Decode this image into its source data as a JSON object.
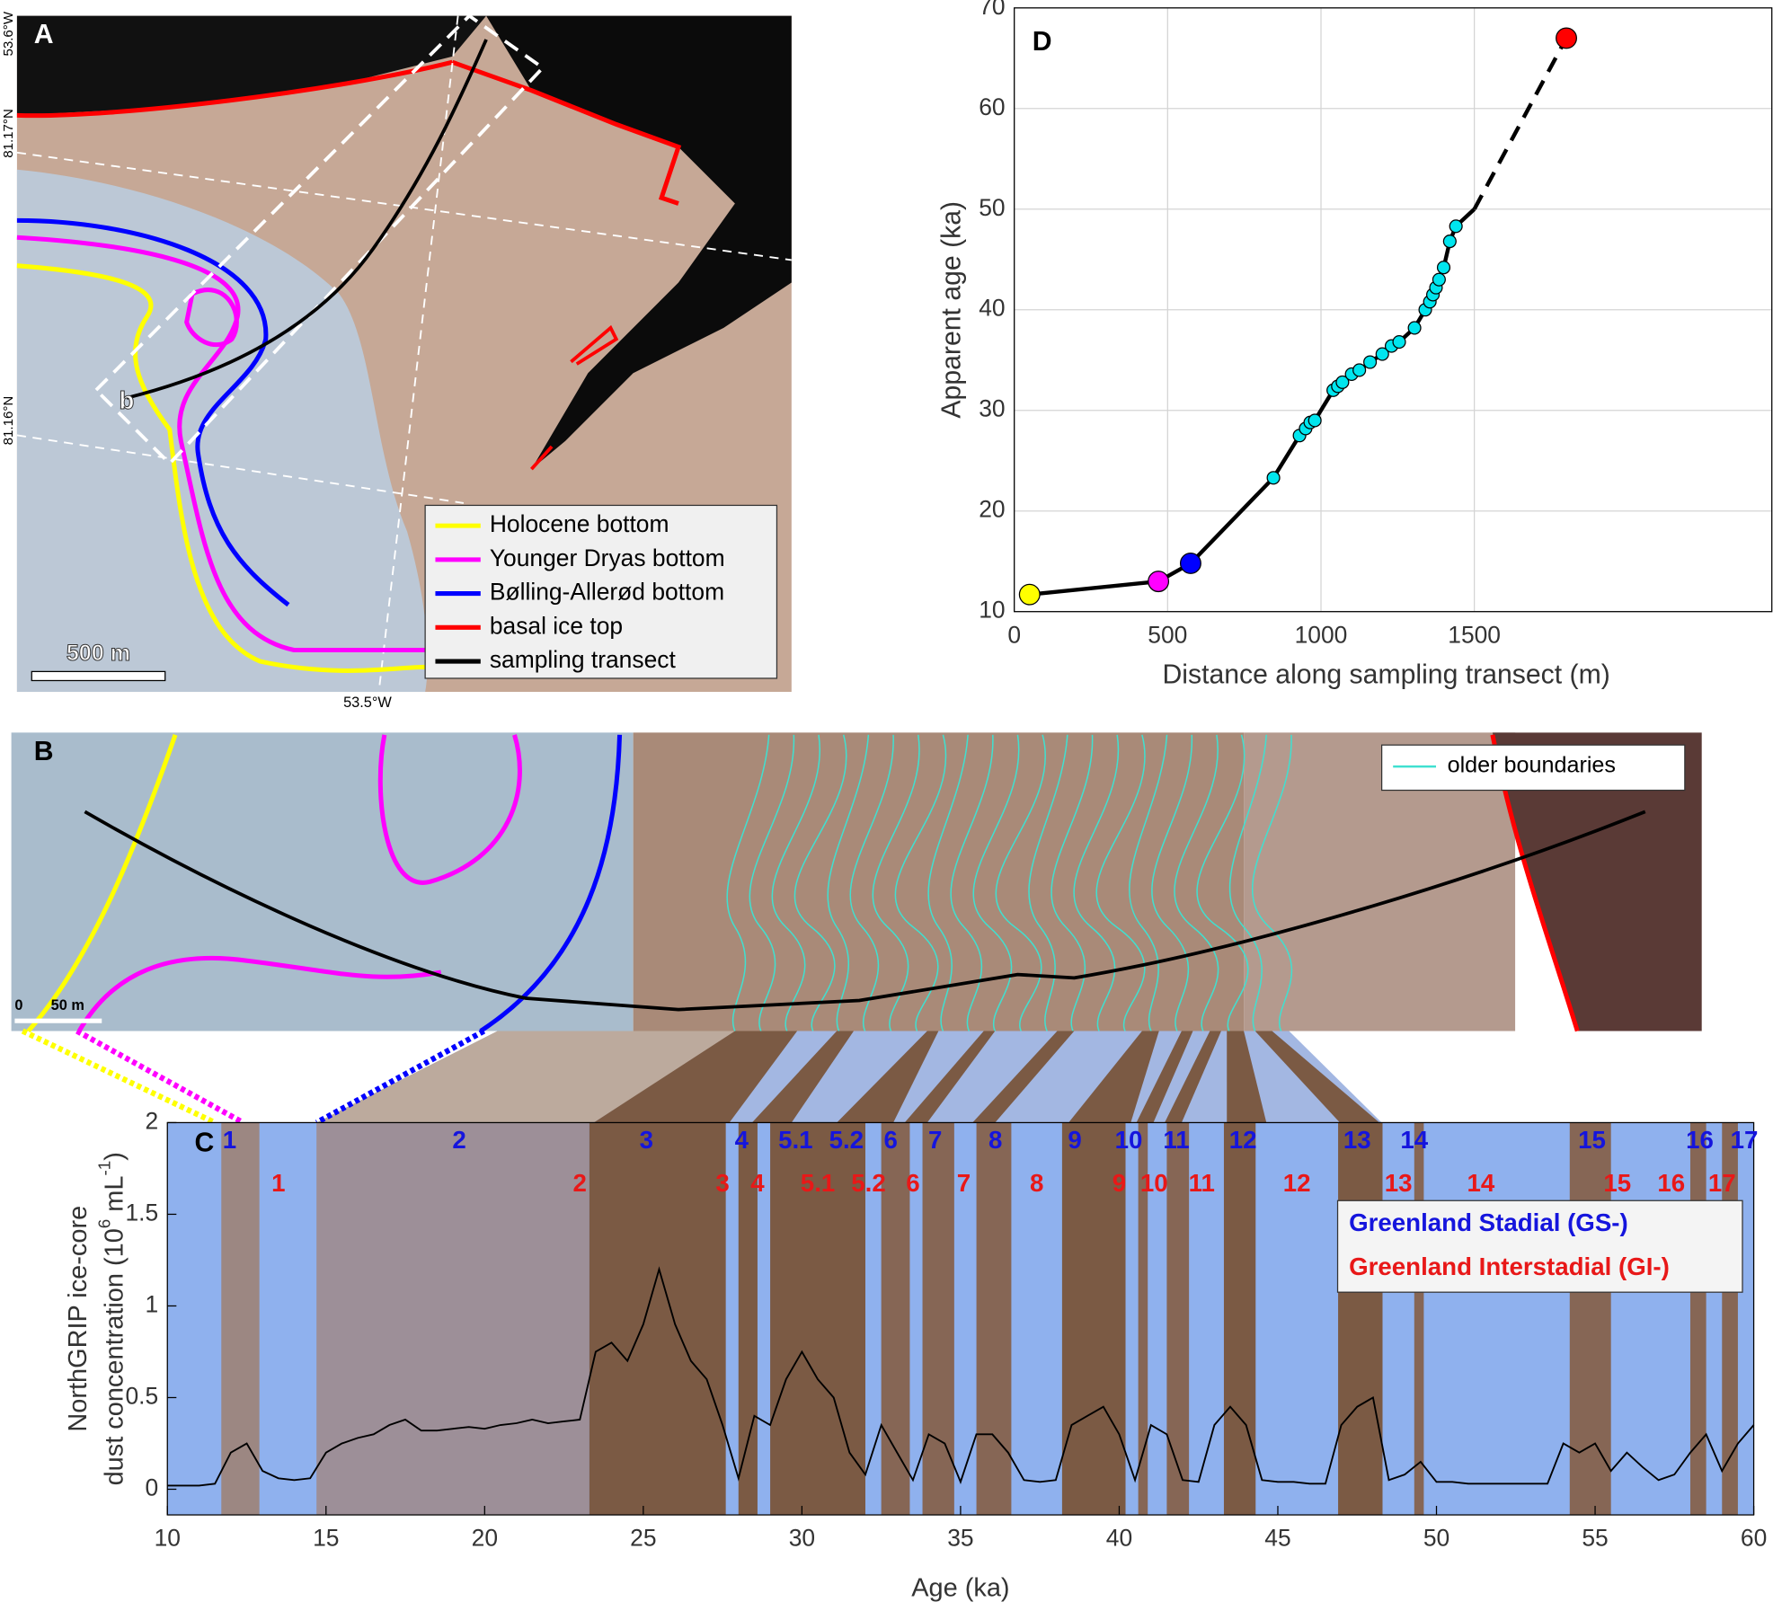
{
  "chart_data": [
    {
      "type": "map",
      "label": "A",
      "point_label": "b",
      "scale_bar": "500 m",
      "lat_labels": [
        "53.6°W",
        "81.17°N",
        "81.16°N"
      ],
      "lon_label": "53.5°W",
      "legend": [
        {
          "name": "Holocene bottom",
          "color": "#ffff00"
        },
        {
          "name": "Younger Dryas bottom",
          "color": "#ff00ff"
        },
        {
          "name": "Bølling-Allerød bottom",
          "color": "#0000ff"
        },
        {
          "name": "basal ice top",
          "color": "#ff0000"
        },
        {
          "name": "sampling transect",
          "color": "#000000"
        }
      ]
    },
    {
      "type": "image",
      "label": "B",
      "scale_zero": 0,
      "scale_bar": "50 m",
      "legend": [
        {
          "name": "older boundaries",
          "color": "#40e0d0"
        }
      ]
    },
    {
      "type": "line",
      "label": "C",
      "xlabel": "Age (ka)",
      "ylabel": [
        "NorthGRIP ice-core",
        "dust concentration (10",
        "6",
        " mL",
        "-1",
        ")"
      ],
      "xlim": [
        10,
        60
      ],
      "ylim": [
        -0.14,
        2
      ],
      "xticks": [
        10,
        15,
        20,
        25,
        30,
        35,
        40,
        45,
        50,
        55,
        60
      ],
      "yticks": [
        0,
        0.5,
        1,
        1.5,
        2
      ],
      "background": "#8fb1ee",
      "legend": [
        {
          "name": "Greenland Stadial (GS-)",
          "color": "#1515dd"
        },
        {
          "name": "Greenland Interstadial (GI-)",
          "color": "#e81818"
        }
      ],
      "bands": [
        {
          "start": 11.7,
          "end": 12.9,
          "color": "#9c8782"
        },
        {
          "start": 14.7,
          "end": 23.3,
          "color": "#9d8f98"
        },
        {
          "start": 23.3,
          "end": 27.6,
          "color": "#7b5a44"
        },
        {
          "start": 28.0,
          "end": 28.6,
          "color": "#7b5a44"
        },
        {
          "start": 29.0,
          "end": 32.0,
          "color": "#7b5a44"
        },
        {
          "start": 32.5,
          "end": 33.4,
          "color": "#866655"
        },
        {
          "start": 33.8,
          "end": 34.8,
          "color": "#866655"
        },
        {
          "start": 35.5,
          "end": 36.6,
          "color": "#866655"
        },
        {
          "start": 38.2,
          "end": 40.2,
          "color": "#7b5a44"
        },
        {
          "start": 40.6,
          "end": 40.9,
          "color": "#866655"
        },
        {
          "start": 41.5,
          "end": 42.2,
          "color": "#866655"
        },
        {
          "start": 43.3,
          "end": 44.3,
          "color": "#7b5a44"
        },
        {
          "start": 46.9,
          "end": 48.3,
          "color": "#7b5a44"
        },
        {
          "start": 49.3,
          "end": 49.6,
          "color": "#866655"
        },
        {
          "start": 54.2,
          "end": 55.5,
          "color": "#866655"
        },
        {
          "start": 58.0,
          "end": 58.5,
          "color": "#866655"
        },
        {
          "start": 59.0,
          "end": 59.5,
          "color": "#866655"
        }
      ],
      "gs_labels": [
        {
          "label": "1",
          "age": 11.96
        },
        {
          "label": "2",
          "age": 19.2
        },
        {
          "label": "3",
          "age": 25.1
        },
        {
          "label": "4",
          "age": 28.1
        },
        {
          "label": "5.1",
          "age": 29.8
        },
        {
          "label": "5.2",
          "age": 31.4
        },
        {
          "label": "6",
          "age": 32.8
        },
        {
          "label": "7",
          "age": 34.2
        },
        {
          "label": "8",
          "age": 36.1
        },
        {
          "label": "9",
          "age": 38.6
        },
        {
          "label": "10",
          "age": 40.3
        },
        {
          "label": "11",
          "age": 41.8
        },
        {
          "label": "12",
          "age": 43.9
        },
        {
          "label": "13",
          "age": 47.5
        },
        {
          "label": "14",
          "age": 49.3
        },
        {
          "label": "15",
          "age": 54.9
        },
        {
          "label": "16",
          "age": 58.3
        },
        {
          "label": "17",
          "age": 59.7
        }
      ],
      "gi_labels": [
        {
          "label": "1",
          "age": 13.5
        },
        {
          "label": "2",
          "age": 23.0
        },
        {
          "label": "3",
          "age": 27.5
        },
        {
          "label": "4",
          "age": 28.6
        },
        {
          "label": "5.1",
          "age": 30.5
        },
        {
          "label": "5.2",
          "age": 32.1
        },
        {
          "label": "6",
          "age": 33.5
        },
        {
          "label": "7",
          "age": 35.1
        },
        {
          "label": "8",
          "age": 37.4
        },
        {
          "label": "9",
          "age": 40.0
        },
        {
          "label": "10",
          "age": 41.1
        },
        {
          "label": "11",
          "age": 42.6
        },
        {
          "label": "12",
          "age": 45.6
        },
        {
          "label": "13",
          "age": 48.8
        },
        {
          "label": "14",
          "age": 51.4
        },
        {
          "label": "15",
          "age": 55.7
        },
        {
          "label": "16",
          "age": 57.4
        },
        {
          "label": "17",
          "age": 59.0
        }
      ],
      "series": [
        {
          "color": "#000000",
          "x": [
            10,
            10.5,
            11,
            11.5,
            12,
            12.5,
            13,
            13.5,
            14,
            14.5,
            15,
            15.5,
            16,
            16.5,
            17,
            17.5,
            18,
            18.5,
            19,
            19.5,
            20,
            20.5,
            21,
            21.5,
            22,
            22.5,
            23,
            23.5,
            24,
            24.5,
            25,
            25.5,
            26,
            26.5,
            27,
            27.5,
            28,
            28.5,
            29,
            29.5,
            30,
            30.5,
            31,
            31.5,
            32,
            32.5,
            33,
            33.5,
            34,
            34.5,
            35,
            35.5,
            36,
            36.5,
            37,
            37.5,
            38,
            38.5,
            39,
            39.5,
            40,
            40.5,
            41,
            41.5,
            42,
            42.5,
            43,
            43.5,
            44,
            44.5,
            45,
            45.5,
            46,
            46.5,
            47,
            47.5,
            48,
            48.5,
            49,
            49.5,
            50,
            50.5,
            51,
            51.5,
            52,
            52.5,
            53,
            53.5,
            54,
            54.5,
            55,
            55.5,
            56,
            56.5,
            57,
            57.5,
            58,
            58.5,
            59,
            59.5,
            60
          ],
          "values": [
            0.02,
            0.02,
            0.02,
            0.03,
            0.2,
            0.25,
            0.1,
            0.06,
            0.05,
            0.06,
            0.2,
            0.25,
            0.28,
            0.3,
            0.35,
            0.38,
            0.32,
            0.32,
            0.33,
            0.34,
            0.33,
            0.35,
            0.36,
            0.38,
            0.36,
            0.37,
            0.38,
            0.75,
            0.8,
            0.7,
            0.9,
            1.2,
            0.9,
            0.7,
            0.6,
            0.35,
            0.06,
            0.4,
            0.35,
            0.6,
            0.75,
            0.6,
            0.5,
            0.2,
            0.08,
            0.35,
            0.2,
            0.05,
            0.3,
            0.25,
            0.04,
            0.3,
            0.3,
            0.2,
            0.05,
            0.04,
            0.05,
            0.35,
            0.4,
            0.45,
            0.3,
            0.05,
            0.35,
            0.3,
            0.05,
            0.04,
            0.35,
            0.45,
            0.35,
            0.05,
            0.04,
            0.04,
            0.03,
            0.03,
            0.35,
            0.45,
            0.5,
            0.05,
            0.08,
            0.15,
            0.04,
            0.04,
            0.03,
            0.03,
            0.03,
            0.03,
            0.03,
            0.03,
            0.25,
            0.2,
            0.25,
            0.1,
            0.2,
            0.12,
            0.05,
            0.08,
            0.2,
            0.3,
            0.1,
            0.25,
            0.35
          ]
        }
      ]
    },
    {
      "type": "scatter",
      "label": "D",
      "xlabel": "Distance along sampling transect (m)",
      "ylabel": "Apparent age (ka)",
      "xlim": [
        0,
        2470
      ],
      "ylim": [
        10,
        70
      ],
      "xticks": [
        0,
        500,
        1000,
        1500
      ],
      "yticks": [
        10,
        20,
        30,
        40,
        50,
        60,
        70
      ],
      "grid": true,
      "series": [
        {
          "color": "#000000",
          "style": "solid",
          "x": [
            50,
            470,
            575,
            845,
            930,
            950,
            965,
            980,
            1040,
            1055,
            1070,
            1100,
            1125,
            1160,
            1200,
            1230,
            1255,
            1305,
            1340,
            1355,
            1365,
            1375,
            1385,
            1400,
            1420,
            1440,
            1500
          ],
          "values": [
            11.7,
            13.0,
            14.8,
            23.3,
            27.5,
            28.2,
            28.8,
            29.0,
            32.0,
            32.4,
            32.8,
            33.6,
            34.0,
            34.8,
            35.6,
            36.4,
            36.8,
            38.2,
            40.0,
            40.8,
            41.5,
            42.2,
            43.0,
            44.2,
            46.8,
            48.3,
            50
          ]
        },
        {
          "color": "#000000",
          "style": "dashed",
          "x": [
            1500,
            1800
          ],
          "values": [
            50,
            67
          ]
        },
        {
          "color": "#00e5ee",
          "style": "points",
          "size": "small",
          "x": [
            845,
            930,
            950,
            965,
            980,
            1040,
            1055,
            1070,
            1100,
            1125,
            1160,
            1200,
            1230,
            1255,
            1305,
            1340,
            1355,
            1365,
            1375,
            1385,
            1400,
            1420,
            1440
          ],
          "values": [
            23.3,
            27.5,
            28.2,
            28.8,
            29.0,
            32.0,
            32.4,
            32.8,
            33.6,
            34.0,
            34.8,
            35.6,
            36.4,
            36.8,
            38.2,
            40.0,
            40.8,
            41.5,
            42.2,
            43.0,
            44.2,
            46.8,
            48.3
          ]
        },
        {
          "colors": [
            "#ffff00",
            "#ff00ff",
            "#0000ff",
            "#ff0000"
          ],
          "style": "points",
          "size": "large",
          "x": [
            50,
            470,
            575,
            1800
          ],
          "values": [
            11.7,
            13.0,
            14.8,
            67
          ]
        }
      ]
    }
  ]
}
